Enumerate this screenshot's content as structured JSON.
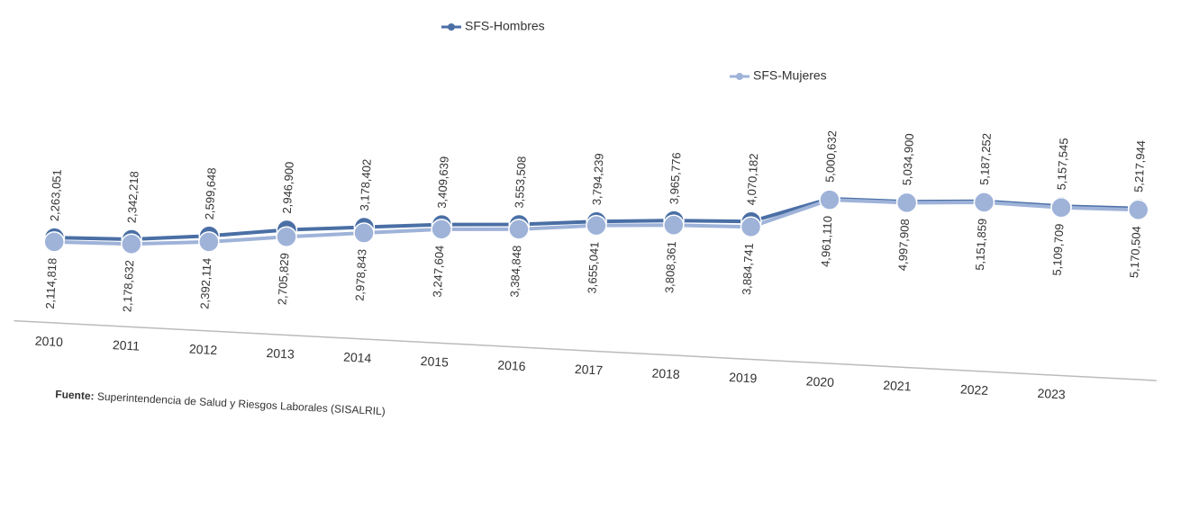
{
  "chart_data": {
    "type": "line",
    "categories": [
      "2010",
      "2011",
      "2012",
      "2013",
      "2014",
      "2015",
      "2016",
      "2017",
      "2018",
      "2019",
      "2020",
      "2021",
      "2022",
      "2023",
      null
    ],
    "series": [
      {
        "name": "SFS-Hombres",
        "color": "#4a6fa5",
        "values": [
          2263051,
          2342218,
          2599648,
          2946900,
          3178402,
          3409639,
          3553508,
          3794239,
          3965776,
          4070182,
          5000632,
          5034900,
          5187252,
          5157545,
          5217944
        ],
        "value_labels": [
          "2,263,051",
          "2,342,218",
          "2,599,648",
          "2,946,900",
          "3,178,402",
          "3,409,639",
          "3,553,508",
          "3,794,239",
          "3,965,776",
          "4,070,182",
          "5,000,632",
          "5,034,900",
          "5,187,252",
          "5,157,545",
          "5,217,944"
        ]
      },
      {
        "name": "SFS-Mujeres",
        "color": "#9fb3d9",
        "values": [
          2114818,
          2178632,
          2392114,
          2705829,
          2978843,
          3247604,
          3384848,
          3655041,
          3808361,
          3884741,
          4961110,
          4997908,
          5151859,
          5109709,
          5170504
        ],
        "value_labels": [
          "2,114,818",
          "2,178,632",
          "2,392,114",
          "2,705,829",
          "2,978,843",
          "3,247,604",
          "3,384,848",
          "3,655,041",
          "3,808,361",
          "3,884,741",
          "4,961,110",
          "4,997,908",
          "5,151,859",
          "5,109,709",
          "5,170,504"
        ]
      }
    ],
    "source_label": "Fuente:",
    "source": "Superintendencia de Salud y Riesgos Laborales (SISALRIL)"
  }
}
